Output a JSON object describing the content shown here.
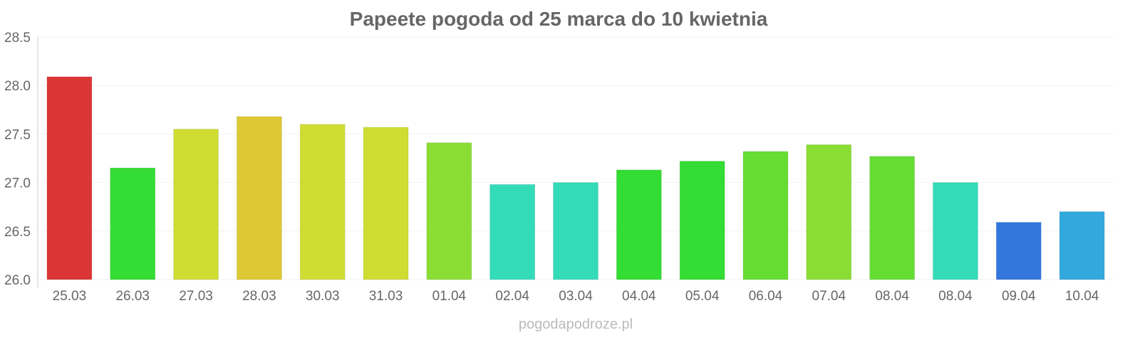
{
  "chart_data": {
    "type": "bar",
    "title": "Papeete pogoda od 25 marca do 10 kwietnia",
    "xlabel": "",
    "ylabel": "",
    "ylim": [
      26.0,
      28.5
    ],
    "yticks": [
      "26.0",
      "26.5",
      "27.0",
      "27.5",
      "28.0",
      "28.5"
    ],
    "grid": true,
    "categories": [
      "25.03",
      "26.03",
      "27.03",
      "28.03",
      "30.03",
      "31.03",
      "01.04",
      "02.04",
      "03.04",
      "04.04",
      "05.04",
      "06.04",
      "07.04",
      "08.04",
      "08.04",
      "09.04",
      "10.04"
    ],
    "values": [
      28.09,
      27.15,
      27.55,
      27.68,
      27.6,
      27.57,
      27.41,
      26.98,
      27.0,
      27.13,
      27.22,
      27.32,
      27.39,
      27.27,
      27.0,
      26.59,
      26.7
    ],
    "colors": [
      "#dc3535",
      "#33dd33",
      "#cfdd33",
      "#dcc933",
      "#cfdd33",
      "#cfdd33",
      "#8add33",
      "#33dbb8",
      "#33dbb8",
      "#33dd33",
      "#33dd33",
      "#66dd33",
      "#8add33",
      "#66dd33",
      "#33dbb8",
      "#3377dd",
      "#33a8dd"
    ]
  },
  "watermark": "pogodapodroze.pl"
}
